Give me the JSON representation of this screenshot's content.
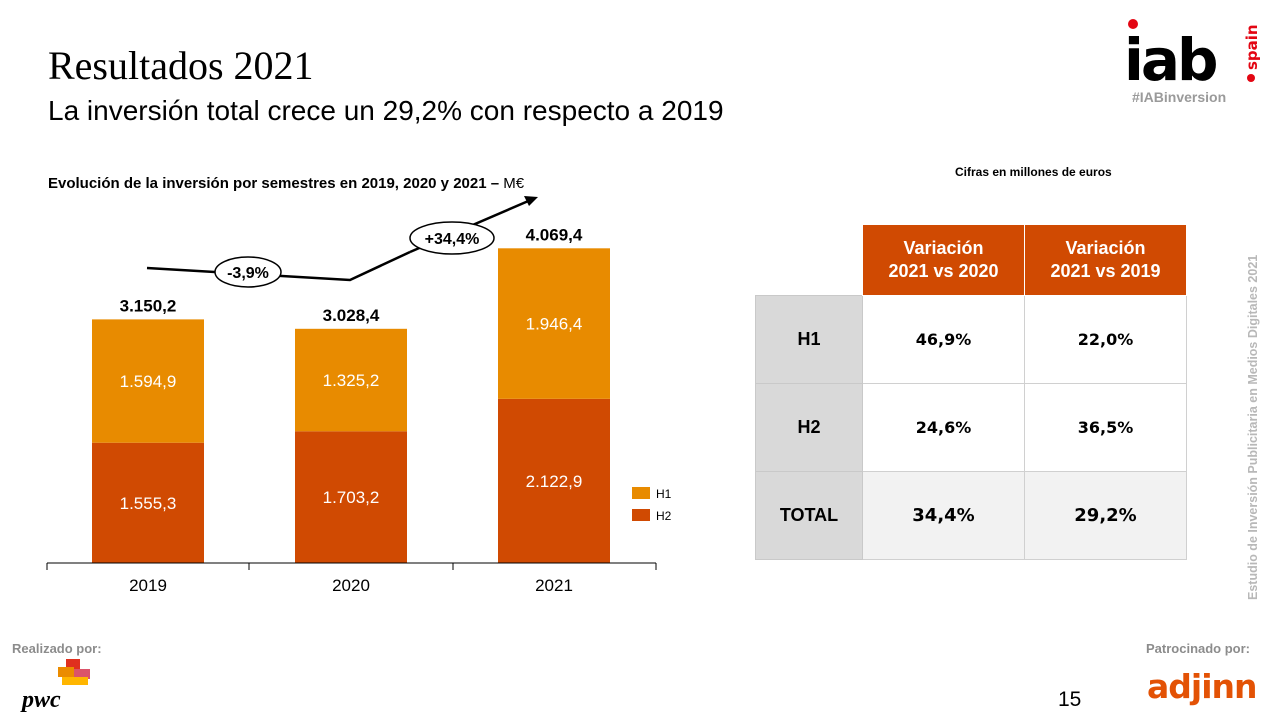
{
  "header": {
    "title": "Resultados 2021",
    "subtitle": "La inversión total crece un 29,2% con respecto a 2019"
  },
  "brand": {
    "iab_logo_main": "iab",
    "iab_logo_side": "spain",
    "hashtag": "#IABinversion",
    "side_text": "Estudio de Inversión Publicitaria en Medios Digitales 2021",
    "accent_color": "#d04a02",
    "h1_color": "#e88b00",
    "h2_color": "#d04a02"
  },
  "chart": {
    "title_main": "Evolución de la inversión por semestres en 2019, 2020 y 2021 –",
    "title_unit": " M€"
  },
  "chart_data": {
    "type": "bar",
    "stacked": true,
    "categories": [
      "2019",
      "2020",
      "2021"
    ],
    "series": [
      {
        "name": "H2",
        "values": [
          1555.3,
          1703.2,
          2122.9
        ],
        "labels": [
          "1.555,3",
          "1.703,2",
          "2.122,9"
        ],
        "color": "#d04a02"
      },
      {
        "name": "H1",
        "values": [
          1594.9,
          1325.2,
          1946.4
        ],
        "labels": [
          "1.594,9",
          "1.325,2",
          "1.946,4"
        ],
        "color": "#e88b00"
      }
    ],
    "totals": [
      3150.2,
      3028.4,
      4069.4
    ],
    "total_labels": [
      "3.150,2",
      "3.028,4",
      "4.069,4"
    ],
    "annotations": [
      "-3,9%",
      "+34,4%"
    ],
    "legend": [
      "H1",
      "H2"
    ],
    "legend_position": "right",
    "ylim": [
      0,
      4500
    ],
    "grid": false
  },
  "table": {
    "note": "Cifras en millones de euros",
    "headers": [
      {
        "line1": "Variación",
        "line2": "2021 vs 2020"
      },
      {
        "line1": "Variación",
        "line2": "2021 vs 2019"
      }
    ],
    "rows": [
      {
        "label": "H1",
        "values": [
          "46,9%",
          "22,0%"
        ]
      },
      {
        "label": "H2",
        "values": [
          "24,6%",
          "36,5%"
        ]
      },
      {
        "label": "TOTAL",
        "values": [
          "34,4%",
          "29,2%"
        ]
      }
    ]
  },
  "footer": {
    "made_by": "Realizado por:",
    "made_by_logo": "pwc",
    "sponsored_by": "Patrocinado por:",
    "sponsor_logo": "adjinn",
    "page_number": "15"
  }
}
